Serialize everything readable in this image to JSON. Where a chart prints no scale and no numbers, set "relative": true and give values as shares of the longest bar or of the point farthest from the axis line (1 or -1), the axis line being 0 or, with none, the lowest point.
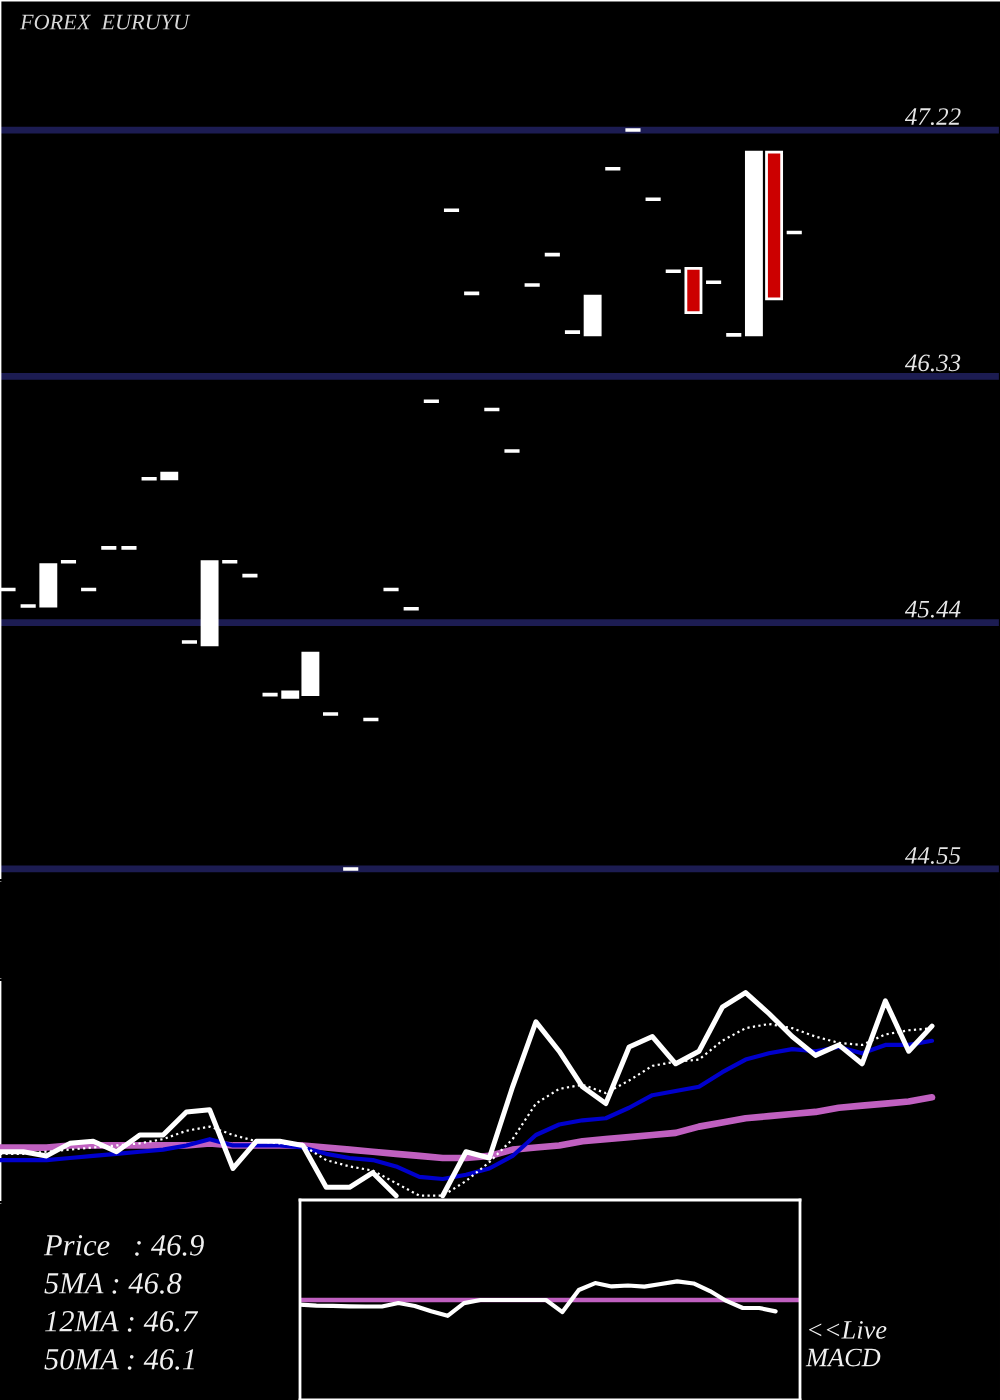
{
  "chart_data": [
    {
      "type": "candlestick",
      "title": "FOREX  EURUYU",
      "categories": [
        null,
        null,
        null,
        null,
        null,
        null,
        null,
        null,
        null,
        null,
        null,
        null,
        null,
        null,
        null,
        null,
        null,
        null,
        null,
        null,
        null,
        null,
        null,
        null,
        null,
        null,
        null,
        null,
        null,
        null,
        null,
        null,
        null,
        null,
        null,
        null,
        null,
        null,
        null,
        null
      ],
      "ohlc": [
        [
          45.56,
          45.56,
          45.56,
          45.56
        ],
        [
          45.5,
          45.5,
          45.5,
          45.5
        ],
        [
          45.5,
          45.65,
          45.5,
          45.65
        ],
        [
          45.66,
          45.66,
          45.66,
          45.66
        ],
        [
          45.56,
          45.56,
          45.56,
          45.56
        ],
        [
          45.71,
          45.71,
          45.71,
          45.71
        ],
        [
          45.71,
          45.71,
          45.71,
          45.71
        ],
        [
          45.96,
          45.96,
          45.96,
          45.96
        ],
        [
          45.96,
          45.98,
          45.96,
          45.98
        ],
        [
          45.37,
          45.37,
          45.37,
          45.37
        ],
        [
          45.36,
          45.66,
          45.36,
          45.66
        ],
        [
          45.66,
          45.66,
          45.66,
          45.66
        ],
        [
          45.61,
          45.61,
          45.61,
          45.61
        ],
        [
          45.18,
          45.18,
          45.18,
          45.18
        ],
        [
          45.17,
          45.19,
          45.17,
          45.19
        ],
        [
          45.18,
          45.33,
          45.18,
          45.33
        ],
        [
          45.11,
          45.11,
          45.11,
          45.11
        ],
        [
          44.55,
          44.55,
          44.55,
          44.55
        ],
        [
          45.09,
          45.09,
          45.09,
          45.09
        ],
        [
          45.56,
          45.56,
          45.56,
          45.56
        ],
        [
          45.49,
          45.49,
          45.49,
          45.49
        ],
        [
          46.24,
          46.24,
          46.24,
          46.24
        ],
        [
          46.93,
          46.93,
          46.93,
          46.93
        ],
        [
          46.63,
          46.63,
          46.63,
          46.63
        ],
        [
          46.21,
          46.21,
          46.21,
          46.21
        ],
        [
          46.06,
          46.06,
          46.06,
          46.06
        ],
        [
          46.66,
          46.66,
          46.66,
          46.66
        ],
        [
          46.77,
          46.77,
          46.77,
          46.77
        ],
        [
          46.49,
          46.49,
          46.49,
          46.49
        ],
        [
          46.48,
          46.62,
          46.48,
          46.62
        ],
        [
          47.08,
          47.08,
          47.08,
          47.08
        ],
        [
          47.22,
          47.22,
          47.22,
          47.22
        ],
        [
          46.97,
          46.97,
          46.97,
          46.97
        ],
        [
          46.71,
          46.71,
          46.71,
          46.71
        ],
        [
          46.72,
          46.72,
          46.56,
          46.56
        ],
        [
          46.67,
          46.67,
          46.67,
          46.67
        ],
        [
          46.48,
          46.48,
          46.48,
          46.48
        ],
        [
          46.48,
          47.14,
          46.48,
          47.14
        ],
        [
          47.14,
          47.14,
          46.61,
          46.61
        ],
        [
          46.85,
          46.85,
          46.85,
          46.85
        ]
      ],
      "colors": [
        "#ffffff",
        "#ffffff",
        "#ffffff",
        "#ffffff",
        "#ffffff",
        "#ffffff",
        "#ffffff",
        "#ffffff",
        "#ffffff",
        "#ffffff",
        "#ffffff",
        "#ffffff",
        "#ffffff",
        "#ffffff",
        "#ffffff",
        "#ffffff",
        "#ffffff",
        "#ffffff",
        "#ffffff",
        "#ffffff",
        "#ffffff",
        "#ffffff",
        "#ffffff",
        "#ffffff",
        "#ffffff",
        "#ffffff",
        "#ffffff",
        "#ffffff",
        "#ffffff",
        "#ffffff",
        "#ffffff",
        "#ffffff",
        "#ffffff",
        "#ffffff",
        "#cc0000",
        "#ffffff",
        "#ffffff",
        "#ffffff",
        "#cc0000",
        "#ffffff"
      ],
      "ylim": [
        44.51,
        47.69
      ],
      "yticks": [
        47.22,
        46.33,
        45.44,
        44.55
      ],
      "grid": "y",
      "tick_labels": "y"
    },
    {
      "type": "line",
      "relative": true,
      "categories": [
        null,
        null,
        null,
        null,
        null,
        null,
        null,
        null,
        null,
        null,
        null,
        null,
        null,
        null,
        null,
        null,
        null,
        null,
        null,
        null,
        null,
        null,
        null,
        null,
        null,
        null,
        null,
        null,
        null,
        null,
        null,
        null,
        null,
        null,
        null,
        null,
        null,
        null,
        null,
        null,
        null
      ],
      "series": [
        {
          "color": "#c060c0",
          "line_style": "solid",
          "values": [
            0.26,
            0.26,
            0.26,
            0.27,
            0.27,
            0.27,
            0.27,
            0.27,
            0.27,
            0.28,
            0.27,
            0.27,
            0.27,
            0.27,
            0.26,
            0.25,
            0.24,
            0.23,
            0.22,
            0.21,
            0.21,
            0.22,
            0.25,
            0.26,
            0.27,
            0.29,
            0.3,
            0.31,
            0.32,
            0.33,
            0.36,
            0.38,
            0.4,
            0.41,
            0.42,
            0.43,
            0.45,
            0.46,
            0.47,
            0.48,
            0.5
          ]
        },
        {
          "color": "#0000cc",
          "line_style": "solid",
          "values": [
            0.2,
            0.2,
            0.2,
            0.21,
            0.22,
            0.23,
            0.24,
            0.25,
            0.27,
            0.3,
            0.27,
            0.27,
            0.27,
            0.26,
            0.23,
            0.21,
            0.2,
            0.17,
            0.12,
            0.11,
            0.13,
            0.16,
            0.22,
            0.32,
            0.37,
            0.39,
            0.4,
            0.45,
            0.51,
            0.53,
            0.55,
            0.62,
            0.68,
            0.71,
            0.73,
            0.72,
            0.74,
            0.71,
            0.75,
            0.75,
            0.77
          ]
        },
        {
          "color": "#ffffff",
          "line_style": "dotted",
          "values": [
            0.23,
            0.23,
            0.24,
            0.25,
            0.26,
            0.27,
            0.28,
            0.3,
            0.34,
            0.36,
            0.32,
            0.29,
            0.28,
            0.27,
            0.2,
            0.17,
            0.15,
            0.09,
            0.03,
            0.03,
            0.1,
            0.19,
            0.3,
            0.47,
            0.54,
            0.56,
            0.52,
            0.58,
            0.65,
            0.67,
            0.68,
            0.77,
            0.83,
            0.85,
            0.83,
            0.79,
            0.76,
            0.75,
            0.8,
            0.82,
            0.83
          ]
        },
        {
          "color": "#ffffff",
          "line_style": "solid",
          "values": [
            0.24,
            0.24,
            0.22,
            0.28,
            0.29,
            0.24,
            0.32,
            0.32,
            0.43,
            0.44,
            0.16,
            0.29,
            0.29,
            0.27,
            0.07,
            0.07,
            0.14,
            0.03,
            null,
            0.03,
            0.24,
            0.21,
            0.55,
            0.86,
            0.72,
            0.55,
            0.47,
            0.74,
            0.79,
            0.66,
            0.72,
            0.93,
            1.0,
            0.9,
            0.79,
            0.7,
            0.75,
            0.66,
            0.96,
            0.72,
            0.84
          ]
        }
      ],
      "annotations": [
        "Price   : 46.9",
        "5MA : 46.8",
        "12MA : 46.7",
        "50MA : 46.1"
      ]
    },
    {
      "type": "line",
      "relative": true,
      "categories": [
        null,
        null,
        null,
        null,
        null,
        null,
        null,
        null,
        null,
        null,
        null,
        null,
        null,
        null,
        null,
        null,
        null,
        null,
        null,
        null,
        null,
        null,
        null,
        null,
        null,
        null,
        null,
        null,
        null,
        null
      ],
      "series": [
        {
          "color": "#ffffff",
          "line_style": "solid",
          "values": [
            -0.25,
            -0.3,
            -0.32,
            -0.34,
            -0.35,
            -0.35,
            -0.16,
            -0.32,
            -0.61,
            -0.85,
            -0.17,
            0,
            0,
            0,
            0,
            0,
            -0.65,
            0.54,
            0.91,
            0.73,
            0.78,
            0.72,
            0.86,
            1.0,
            0.89,
            0.48,
            -0.05,
            -0.43,
            -0.43,
            -0.61
          ]
        }
      ],
      "ref_lines": [
        {
          "axis": "y",
          "value": 0,
          "color": "#c060c0"
        }
      ],
      "annotations": [
        "<<Live\nMACD"
      ]
    }
  ]
}
